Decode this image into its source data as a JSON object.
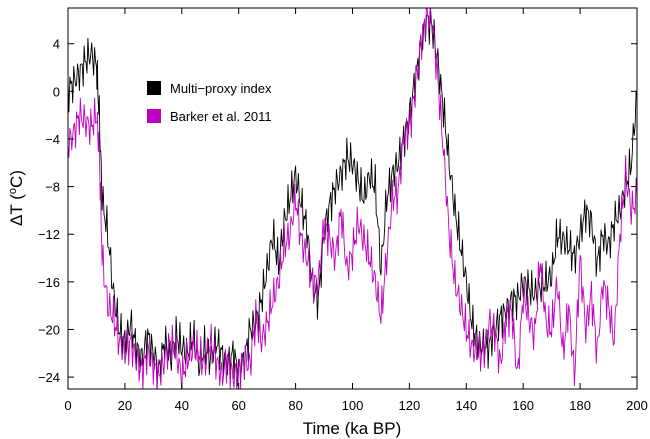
{
  "chart_data": {
    "type": "line",
    "xlabel": "Time (ka BP)",
    "ylabel_prefix": "ΔT (",
    "ylabel_sup": "o",
    "ylabel_suffix": "C)",
    "xlim": [
      0,
      200
    ],
    "ylim": [
      -25,
      7
    ],
    "xticks": [
      0,
      20,
      40,
      60,
      80,
      100,
      120,
      140,
      160,
      180,
      200
    ],
    "yticks": [
      4,
      0,
      -4,
      -8,
      -12,
      -16,
      -20,
      -24
    ],
    "ytick_labels": [
      "4",
      "0",
      "−4",
      "−8",
      "−12",
      "−16",
      "−20",
      "−24"
    ],
    "legend_position": "upper-left",
    "grid": false,
    "series": [
      {
        "name": "Multi−proxy index",
        "color": "#000000",
        "x": [
          0,
          2,
          4,
          6,
          8,
          10,
          11,
          12,
          14,
          16,
          18,
          20,
          22,
          24,
          26,
          28,
          30,
          32,
          34,
          36,
          38,
          40,
          42,
          44,
          46,
          48,
          50,
          52,
          54,
          56,
          58,
          60,
          62,
          64,
          66,
          68,
          70,
          72,
          74,
          76,
          78,
          80,
          82,
          84,
          86,
          88,
          90,
          92,
          94,
          96,
          98,
          100,
          102,
          104,
          106,
          108,
          110,
          112,
          114,
          116,
          118,
          120,
          122,
          124,
          126,
          128,
          130,
          132,
          134,
          136,
          138,
          140,
          142,
          144,
          146,
          148,
          150,
          152,
          154,
          156,
          158,
          160,
          162,
          164,
          166,
          168,
          170,
          172,
          174,
          176,
          178,
          180,
          182,
          184,
          186,
          188,
          190,
          192,
          194,
          196,
          198,
          200
        ],
        "values": [
          0,
          0.8,
          1.5,
          2.5,
          3.2,
          2.2,
          -2,
          -9,
          -12,
          -17,
          -20,
          -21,
          -19.5,
          -21.5,
          -22.5,
          -20.5,
          -22,
          -23.5,
          -21,
          -22.5,
          -20.5,
          -21.5,
          -22,
          -20.5,
          -23,
          -21.5,
          -22.5,
          -21,
          -22,
          -23,
          -22,
          -23.5,
          -22.5,
          -20,
          -19.5,
          -17.5,
          -15,
          -12,
          -14.5,
          -11,
          -9,
          -7,
          -9.5,
          -11.5,
          -16.5,
          -17.5,
          -12,
          -9.5,
          -8,
          -7,
          -5.5,
          -6,
          -7.5,
          -9,
          -7,
          -8,
          -15,
          -9,
          -7,
          -6,
          -4,
          -2,
          1,
          3.5,
          6,
          5.5,
          2.5,
          -1.5,
          -6,
          -10,
          -13,
          -16,
          -19.5,
          -21,
          -21.5,
          -21.5,
          -20,
          -19,
          -18.5,
          -17.5,
          -17.5,
          -16,
          -16.5,
          -17,
          -16.5,
          -16,
          -15.5,
          -12,
          -12.5,
          -13,
          -14,
          -12,
          -10,
          -11,
          -14.5,
          -12,
          -13,
          -11,
          -10,
          -8,
          -6,
          0
        ]
      },
      {
        "name": "Barker et al. 2011",
        "color": "#c000c0",
        "x": [
          0,
          2,
          4,
          6,
          8,
          10,
          11,
          12,
          14,
          16,
          18,
          20,
          22,
          24,
          26,
          28,
          30,
          32,
          34,
          36,
          38,
          40,
          42,
          44,
          46,
          48,
          50,
          52,
          54,
          56,
          58,
          60,
          62,
          64,
          66,
          68,
          70,
          72,
          74,
          76,
          78,
          80,
          82,
          84,
          86,
          88,
          90,
          92,
          94,
          96,
          98,
          100,
          102,
          104,
          106,
          108,
          110,
          112,
          114,
          116,
          118,
          120,
          122,
          124,
          126,
          128,
          130,
          132,
          134,
          136,
          138,
          140,
          142,
          144,
          146,
          148,
          150,
          152,
          154,
          156,
          158,
          160,
          162,
          164,
          166,
          168,
          170,
          172,
          174,
          176,
          178,
          180,
          182,
          184,
          186,
          188,
          190,
          192,
          194,
          196,
          198,
          200
        ],
        "values": [
          -4.5,
          -3.5,
          -2,
          -2.5,
          -3,
          -2,
          -5,
          -14,
          -18,
          -19,
          -21,
          -22,
          -21,
          -22.5,
          -23.5,
          -22,
          -23,
          -24,
          -22.5,
          -21,
          -22,
          -24,
          -22.5,
          -21.5,
          -22,
          -23,
          -21,
          -22.5,
          -24,
          -22.5,
          -24,
          -23.5,
          -22.5,
          -23,
          -19,
          -21,
          -19.5,
          -17.5,
          -16,
          -13,
          -12,
          -9,
          -12.5,
          -14,
          -16,
          -16,
          -11,
          -12.5,
          -14,
          -10,
          -15,
          -13.5,
          -11,
          -12.5,
          -14,
          -16,
          -19,
          -14,
          -9,
          -8.5,
          -4,
          -3,
          0,
          4,
          6.5,
          6,
          1,
          -5,
          -12,
          -16,
          -18,
          -20,
          -21.5,
          -22,
          -22,
          -19.5,
          -20,
          -23,
          -19,
          -18.5,
          -24,
          -17,
          -19,
          -20.5,
          -14,
          -19.5,
          -20,
          -16,
          -22,
          -18,
          -24,
          -14,
          -20,
          -17,
          -22,
          -16,
          -18,
          -21,
          -12,
          -7,
          -10,
          -9
        ]
      }
    ]
  }
}
